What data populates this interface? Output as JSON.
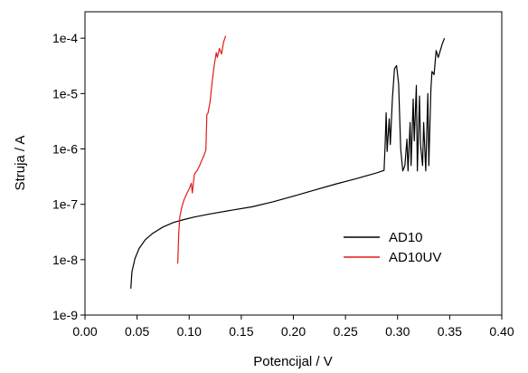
{
  "chart_data": {
    "type": "line",
    "title": "",
    "xlabel": "Potencijal / V",
    "ylabel": "Struja / A",
    "xlim": [
      0.0,
      0.4
    ],
    "ylim": [
      1e-09,
      0.0003
    ],
    "yscale": "log",
    "grid": false,
    "legend": "center-right",
    "x_ticks": [
      0.0,
      0.05,
      0.1,
      0.15,
      0.2,
      0.25,
      0.3,
      0.35,
      0.4
    ],
    "x_tick_labels": [
      "0.00",
      "0.05",
      "0.10",
      "0.15",
      "0.20",
      "0.25",
      "0.30",
      "0.35",
      "0.40"
    ],
    "y_ticks": [
      1e-09,
      1e-08,
      1e-07,
      1e-06,
      1e-05,
      0.0001
    ],
    "y_tick_labels": [
      "1e-9",
      "1e-8",
      "1e-7",
      "1e-6",
      "1e-5",
      "1e-4"
    ],
    "series": [
      {
        "name": "AD10",
        "color": "#000000",
        "points": [
          [
            0.044,
            3e-09
          ],
          [
            0.045,
            6e-09
          ],
          [
            0.048,
            1.05e-08
          ],
          [
            0.052,
            1.6e-08
          ],
          [
            0.058,
            2.3e-08
          ],
          [
            0.065,
            3e-08
          ],
          [
            0.075,
            3.9e-08
          ],
          [
            0.085,
            4.7e-08
          ],
          [
            0.095,
            5.3e-08
          ],
          [
            0.105,
            5.9e-08
          ],
          [
            0.12,
            6.7e-08
          ],
          [
            0.14,
            7.8e-08
          ],
          [
            0.16,
            9e-08
          ],
          [
            0.18,
            1.1e-07
          ],
          [
            0.2,
            1.4e-07
          ],
          [
            0.22,
            1.8e-07
          ],
          [
            0.24,
            2.3e-07
          ],
          [
            0.26,
            2.9e-07
          ],
          [
            0.28,
            3.7e-07
          ],
          [
            0.287,
            4.1e-07
          ],
          [
            0.288,
            1.1e-06
          ],
          [
            0.289,
            4.5e-06
          ],
          [
            0.29,
            9e-07
          ],
          [
            0.292,
            3.5e-06
          ],
          [
            0.293,
            1.2e-06
          ],
          [
            0.295,
            8e-06
          ],
          [
            0.297,
            2.8e-05
          ],
          [
            0.299,
            3.2e-05
          ],
          [
            0.301,
            1.5e-05
          ],
          [
            0.303,
            1e-06
          ],
          [
            0.305,
            4e-07
          ],
          [
            0.307,
            5e-07
          ],
          [
            0.309,
            1.5e-06
          ],
          [
            0.31,
            4e-07
          ],
          [
            0.312,
            3e-06
          ],
          [
            0.313,
            5e-07
          ],
          [
            0.315,
            8e-06
          ],
          [
            0.316,
            1.4e-06
          ],
          [
            0.318,
            1.4e-05
          ],
          [
            0.319,
            4e-07
          ],
          [
            0.321,
            9e-06
          ],
          [
            0.322,
            1.2e-06
          ],
          [
            0.324,
            5e-07
          ],
          [
            0.325,
            3e-06
          ],
          [
            0.327,
            4e-07
          ],
          [
            0.329,
            1e-05
          ],
          [
            0.33,
            5e-07
          ],
          [
            0.332,
            1.2e-05
          ],
          [
            0.333,
            2.5e-05
          ],
          [
            0.335,
            2.2e-05
          ],
          [
            0.337,
            6e-05
          ],
          [
            0.339,
            4.5e-05
          ],
          [
            0.341,
            6e-05
          ],
          [
            0.343,
            8e-05
          ],
          [
            0.345,
            0.0001
          ]
        ]
      },
      {
        "name": "AD10UV",
        "color": "#e4191c",
        "points": [
          [
            0.089,
            8.5e-09
          ],
          [
            0.09,
            3e-08
          ],
          [
            0.091,
            6e-08
          ],
          [
            0.093,
            9e-08
          ],
          [
            0.095,
            1.2e-07
          ],
          [
            0.098,
            1.6e-07
          ],
          [
            0.1,
            1.9e-07
          ],
          [
            0.102,
            2.4e-07
          ],
          [
            0.103,
            1.6e-07
          ],
          [
            0.105,
            3.5e-07
          ],
          [
            0.108,
            4.2e-07
          ],
          [
            0.11,
            5e-07
          ],
          [
            0.112,
            6.2e-07
          ],
          [
            0.114,
            7.5e-07
          ],
          [
            0.116,
            9.5e-07
          ],
          [
            0.117,
            4.2e-06
          ],
          [
            0.118,
            4.4e-06
          ],
          [
            0.12,
            7e-06
          ],
          [
            0.122,
            1.6e-05
          ],
          [
            0.124,
            3.2e-05
          ],
          [
            0.126,
            5.5e-05
          ],
          [
            0.127,
            4.5e-05
          ],
          [
            0.129,
            6.5e-05
          ],
          [
            0.131,
            5.2e-05
          ],
          [
            0.133,
            8.5e-05
          ],
          [
            0.135,
            0.00011
          ]
        ]
      }
    ]
  }
}
